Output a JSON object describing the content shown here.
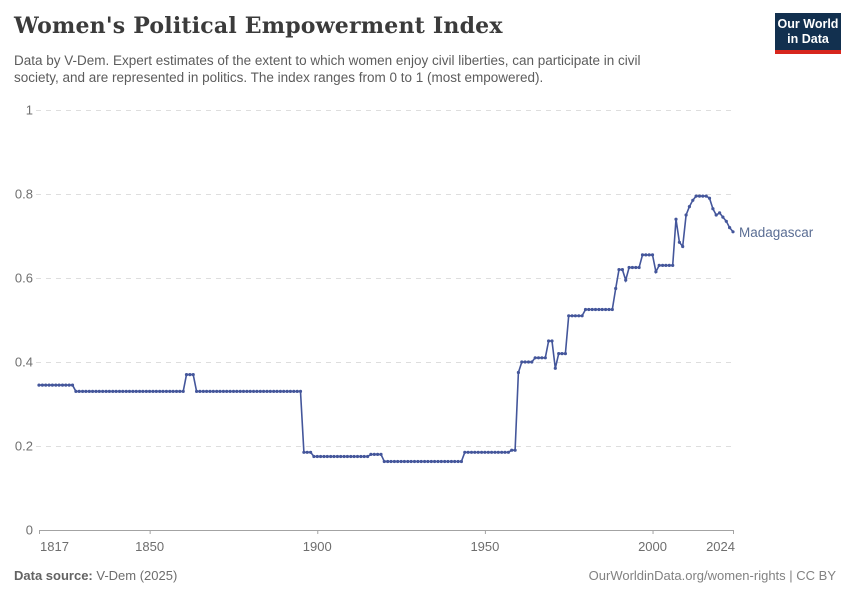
{
  "header": {
    "title": "Women's Political Empowerment Index",
    "subtitle_line1": "Data by V-Dem. Expert estimates of the extent to which women enjoy civil liberties, can participate in civil",
    "subtitle_line2": "society, and are represented in politics. The index ranges from 0 to 1 (most empowered).",
    "logo": {
      "line1": "Our World",
      "line2": "in Data",
      "bg_color": "#12304f",
      "bar_color": "#d7261d"
    }
  },
  "chart_data": {
    "type": "line",
    "title": "Women's Political Empowerment Index",
    "xlabel": "",
    "ylabel": "",
    "xlim": [
      1817,
      2024
    ],
    "ylim": [
      0,
      1
    ],
    "x_ticks": [
      1817,
      1850,
      1900,
      1950,
      2000,
      2024
    ],
    "y_ticks": [
      0,
      0.2,
      0.4,
      0.6,
      0.8,
      1
    ],
    "grid": "horizontal-dashed",
    "legend_position": "end-of-line-label",
    "series": [
      {
        "name": "Madagascar",
        "color": "#44569b",
        "label_color": "#5b6e94",
        "segments_format": "[start_year, end_year, index_value]",
        "segments": [
          [
            1817,
            1827,
            0.345
          ],
          [
            1828,
            1860,
            0.33
          ],
          [
            1861,
            1863,
            0.37
          ],
          [
            1864,
            1895,
            0.33
          ],
          [
            1896,
            1898,
            0.185
          ],
          [
            1899,
            1915,
            0.175
          ],
          [
            1916,
            1919,
            0.18
          ],
          [
            1920,
            1943,
            0.163
          ],
          [
            1944,
            1957,
            0.185
          ],
          [
            1958,
            1959,
            0.19
          ],
          [
            1960,
            1960,
            0.375
          ],
          [
            1961,
            1964,
            0.4
          ],
          [
            1965,
            1968,
            0.41
          ],
          [
            1969,
            1970,
            0.45
          ],
          [
            1971,
            1971,
            0.385
          ],
          [
            1972,
            1974,
            0.42
          ],
          [
            1975,
            1979,
            0.51
          ],
          [
            1980,
            1988,
            0.525
          ],
          [
            1989,
            1989,
            0.575
          ],
          [
            1990,
            1991,
            0.62
          ],
          [
            1992,
            1992,
            0.595
          ],
          [
            1993,
            1996,
            0.625
          ],
          [
            1997,
            2000,
            0.655
          ],
          [
            2001,
            2001,
            0.615
          ],
          [
            2002,
            2006,
            0.63
          ],
          [
            2007,
            2007,
            0.74
          ],
          [
            2008,
            2008,
            0.685
          ],
          [
            2009,
            2009,
            0.675
          ],
          [
            2010,
            2010,
            0.75
          ],
          [
            2011,
            2011,
            0.77
          ],
          [
            2012,
            2012,
            0.785
          ],
          [
            2013,
            2016,
            0.795
          ],
          [
            2017,
            2017,
            0.79
          ],
          [
            2018,
            2018,
            0.765
          ],
          [
            2019,
            2019,
            0.75
          ],
          [
            2020,
            2020,
            0.755
          ],
          [
            2021,
            2021,
            0.745
          ],
          [
            2022,
            2022,
            0.735
          ],
          [
            2023,
            2023,
            0.72
          ],
          [
            2024,
            2024,
            0.71
          ]
        ]
      }
    ]
  },
  "footer": {
    "source_label": "Data source:",
    "source_value": " V-Dem (2025)",
    "credit": "OurWorldinData.org/women-rights | CC BY"
  }
}
